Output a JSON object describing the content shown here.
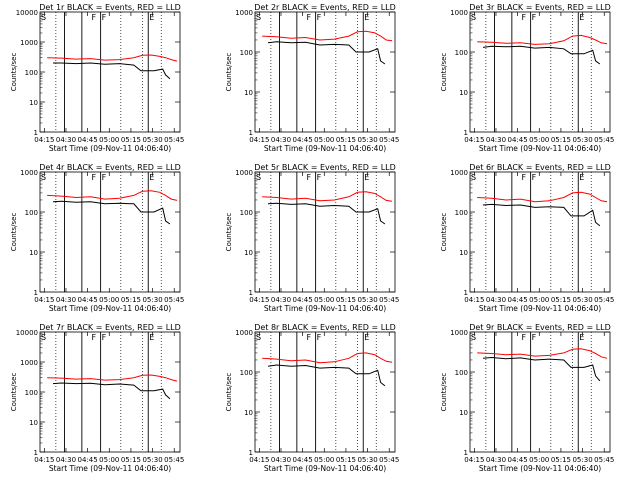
{
  "figure": {
    "start_label": "Start Time (09-Nov-11 04:06:40)",
    "ylabel": "Counts/sec",
    "x_ticks": [
      "04:15",
      "04:30",
      "04:45",
      "05:00",
      "05:15",
      "05:30",
      "05:45"
    ],
    "y_ticks": [
      "1",
      "10",
      "100",
      "1000",
      "10000"
    ],
    "markers": [
      "S",
      "F",
      "F",
      "E"
    ],
    "colors": {
      "events": "#000000",
      "lld": "#ff0000",
      "background": "#ffffff"
    }
  },
  "chart_data": [
    {
      "type": "line",
      "title": "Det 1r BLACK = Events, RED = LLD",
      "xlabel": "Start Time (09-Nov-11 04:06:40)",
      "ylabel": "Counts/sec",
      "x_unit": "minutes after 04:06:40",
      "ylim": [
        1,
        10000
      ],
      "y_scale": "log",
      "series": [
        {
          "name": "Events",
          "color": "#000000",
          "x": [
            14,
            20,
            30,
            40,
            50,
            60,
            70,
            75,
            78,
            84,
            90,
            92,
            95
          ],
          "values": [
            200,
            200,
            190,
            200,
            180,
            190,
            170,
            110,
            110,
            110,
            125,
            80,
            60
          ]
        },
        {
          "name": "LLD",
          "color": "#ff0000",
          "x": [
            10,
            20,
            30,
            40,
            50,
            60,
            70,
            76,
            82,
            88,
            92,
            96,
            100
          ],
          "values": [
            300,
            290,
            270,
            280,
            250,
            260,
            300,
            360,
            370,
            330,
            300,
            260,
            230
          ]
        }
      ]
    },
    {
      "type": "line",
      "title": "Det 2r BLACK = Events, RED = LLD",
      "xlabel": "Start Time (09-Nov-11 04:06:40)",
      "ylabel": "Counts/sec",
      "x_unit": "minutes after 04:06:40",
      "ylim": [
        1,
        1000
      ],
      "y_scale": "log",
      "series": [
        {
          "name": "Events",
          "color": "#000000",
          "x": [
            14,
            20,
            30,
            40,
            50,
            60,
            70,
            75,
            78,
            84,
            90,
            92,
            95
          ],
          "values": [
            170,
            180,
            170,
            175,
            150,
            155,
            150,
            100,
            100,
            100,
            120,
            60,
            50
          ]
        },
        {
          "name": "LLD",
          "color": "#ff0000",
          "x": [
            10,
            20,
            30,
            40,
            50,
            60,
            70,
            76,
            82,
            88,
            92,
            96,
            100
          ],
          "values": [
            250,
            240,
            220,
            230,
            200,
            210,
            250,
            320,
            330,
            300,
            250,
            200,
            190
          ]
        }
      ]
    },
    {
      "type": "line",
      "title": "Det 3r BLACK = Events, RED = LLD",
      "xlabel": "Start Time (09-Nov-11 04:06:40)",
      "ylabel": "Counts/sec",
      "x_unit": "minutes after 04:06:40",
      "ylim": [
        1,
        1000
      ],
      "y_scale": "log",
      "series": [
        {
          "name": "Events",
          "color": "#000000",
          "x": [
            14,
            20,
            30,
            40,
            50,
            60,
            70,
            75,
            78,
            84,
            90,
            92,
            95
          ],
          "values": [
            130,
            140,
            135,
            140,
            125,
            130,
            120,
            90,
            90,
            90,
            110,
            60,
            50
          ]
        },
        {
          "name": "LLD",
          "color": "#ff0000",
          "x": [
            10,
            20,
            30,
            40,
            50,
            60,
            70,
            76,
            82,
            88,
            92,
            96,
            100
          ],
          "values": [
            180,
            175,
            165,
            170,
            155,
            160,
            190,
            250,
            260,
            230,
            200,
            170,
            160
          ]
        }
      ]
    },
    {
      "type": "line",
      "title": "Det 4r BLACK = Events, RED = LLD",
      "xlabel": "Start Time (09-Nov-11 04:06:40)",
      "ylabel": "Counts/sec",
      "x_unit": "minutes after 04:06:40",
      "ylim": [
        1,
        1000
      ],
      "y_scale": "log",
      "series": [
        {
          "name": "Events",
          "color": "#000000",
          "x": [
            14,
            20,
            30,
            40,
            50,
            60,
            70,
            75,
            78,
            84,
            90,
            92,
            95
          ],
          "values": [
            180,
            185,
            175,
            180,
            160,
            165,
            160,
            100,
            100,
            100,
            125,
            60,
            50
          ]
        },
        {
          "name": "LLD",
          "color": "#ff0000",
          "x": [
            10,
            20,
            30,
            40,
            50,
            60,
            70,
            76,
            82,
            88,
            92,
            96,
            100
          ],
          "values": [
            260,
            250,
            230,
            240,
            210,
            220,
            260,
            330,
            340,
            310,
            260,
            210,
            195
          ]
        }
      ]
    },
    {
      "type": "line",
      "title": "Det 5r BLACK = Events, RED = LLD",
      "xlabel": "Start Time (09-Nov-11 04:06:40)",
      "ylabel": "Counts/sec",
      "x_unit": "minutes after 04:06:40",
      "ylim": [
        1,
        1000
      ],
      "y_scale": "log",
      "series": [
        {
          "name": "Events",
          "color": "#000000",
          "x": [
            14,
            20,
            30,
            40,
            50,
            60,
            70,
            75,
            78,
            84,
            90,
            92,
            95
          ],
          "values": [
            160,
            165,
            155,
            160,
            140,
            145,
            140,
            100,
            100,
            100,
            120,
            60,
            50
          ]
        },
        {
          "name": "LLD",
          "color": "#ff0000",
          "x": [
            10,
            20,
            30,
            40,
            50,
            60,
            70,
            76,
            82,
            88,
            92,
            96,
            100
          ],
          "values": [
            240,
            230,
            210,
            220,
            190,
            200,
            240,
            310,
            320,
            290,
            240,
            195,
            185
          ]
        }
      ]
    },
    {
      "type": "line",
      "title": "Det 6r BLACK = Events, RED = LLD",
      "xlabel": "Start Time (09-Nov-11 04:06:40)",
      "ylabel": "Counts/sec",
      "x_unit": "minutes after 04:06:40",
      "ylim": [
        1,
        1000
      ],
      "y_scale": "log",
      "series": [
        {
          "name": "Events",
          "color": "#000000",
          "x": [
            14,
            20,
            30,
            40,
            50,
            60,
            70,
            75,
            78,
            84,
            90,
            92,
            95
          ],
          "values": [
            150,
            155,
            145,
            150,
            130,
            135,
            130,
            80,
            80,
            80,
            110,
            55,
            45
          ]
        },
        {
          "name": "LLD",
          "color": "#ff0000",
          "x": [
            10,
            20,
            30,
            40,
            50,
            60,
            70,
            76,
            82,
            88,
            92,
            96,
            100
          ],
          "values": [
            230,
            220,
            200,
            210,
            180,
            190,
            230,
            300,
            310,
            280,
            230,
            190,
            180
          ]
        }
      ]
    },
    {
      "type": "line",
      "title": "Det 7r BLACK = Events, RED = LLD",
      "xlabel": "Start Time (09-Nov-11 04:06:40)",
      "ylabel": "Counts/sec",
      "x_unit": "minutes after 04:06:40",
      "ylim": [
        1,
        10000
      ],
      "y_scale": "log",
      "series": [
        {
          "name": "Events",
          "color": "#000000",
          "x": [
            14,
            20,
            30,
            40,
            50,
            60,
            70,
            75,
            78,
            84,
            90,
            92,
            95
          ],
          "values": [
            190,
            200,
            190,
            195,
            175,
            185,
            170,
            110,
            110,
            110,
            125,
            80,
            60
          ]
        },
        {
          "name": "LLD",
          "color": "#ff0000",
          "x": [
            10,
            20,
            30,
            40,
            50,
            60,
            70,
            76,
            82,
            88,
            92,
            96,
            100
          ],
          "values": [
            300,
            290,
            270,
            280,
            250,
            260,
            300,
            360,
            370,
            330,
            300,
            260,
            230
          ]
        }
      ]
    },
    {
      "type": "line",
      "title": "Det 8r BLACK = Events, RED = LLD",
      "xlabel": "Start Time (09-Nov-11 04:06:40)",
      "ylabel": "Counts/sec",
      "x_unit": "minutes after 04:06:40",
      "ylim": [
        1,
        1000
      ],
      "y_scale": "log",
      "series": [
        {
          "name": "Events",
          "color": "#000000",
          "x": [
            14,
            20,
            30,
            40,
            50,
            60,
            70,
            75,
            78,
            84,
            90,
            92,
            95
          ],
          "values": [
            140,
            150,
            140,
            145,
            125,
            130,
            125,
            90,
            90,
            90,
            110,
            55,
            45
          ]
        },
        {
          "name": "LLD",
          "color": "#ff0000",
          "x": [
            10,
            20,
            30,
            40,
            50,
            60,
            70,
            76,
            82,
            88,
            92,
            96,
            100
          ],
          "values": [
            220,
            210,
            190,
            200,
            170,
            180,
            220,
            290,
            300,
            270,
            220,
            185,
            175
          ]
        }
      ]
    },
    {
      "type": "line",
      "title": "Det 9r BLACK = Events, RED = LLD",
      "xlabel": "Start Time (09-Nov-11 04:06:40)",
      "ylabel": "Counts/sec",
      "x_unit": "minutes after 04:06:40",
      "ylim": [
        1,
        1000
      ],
      "y_scale": "log",
      "series": [
        {
          "name": "Events",
          "color": "#000000",
          "x": [
            14,
            20,
            30,
            40,
            50,
            60,
            70,
            75,
            78,
            84,
            90,
            92,
            95
          ],
          "values": [
            220,
            230,
            215,
            225,
            200,
            210,
            200,
            130,
            130,
            130,
            150,
            80,
            60
          ]
        },
        {
          "name": "LLD",
          "color": "#ff0000",
          "x": [
            10,
            20,
            30,
            40,
            50,
            60,
            70,
            76,
            82,
            88,
            92,
            96,
            100
          ],
          "values": [
            300,
            290,
            270,
            280,
            250,
            260,
            300,
            370,
            380,
            340,
            290,
            240,
            220
          ]
        }
      ]
    }
  ]
}
